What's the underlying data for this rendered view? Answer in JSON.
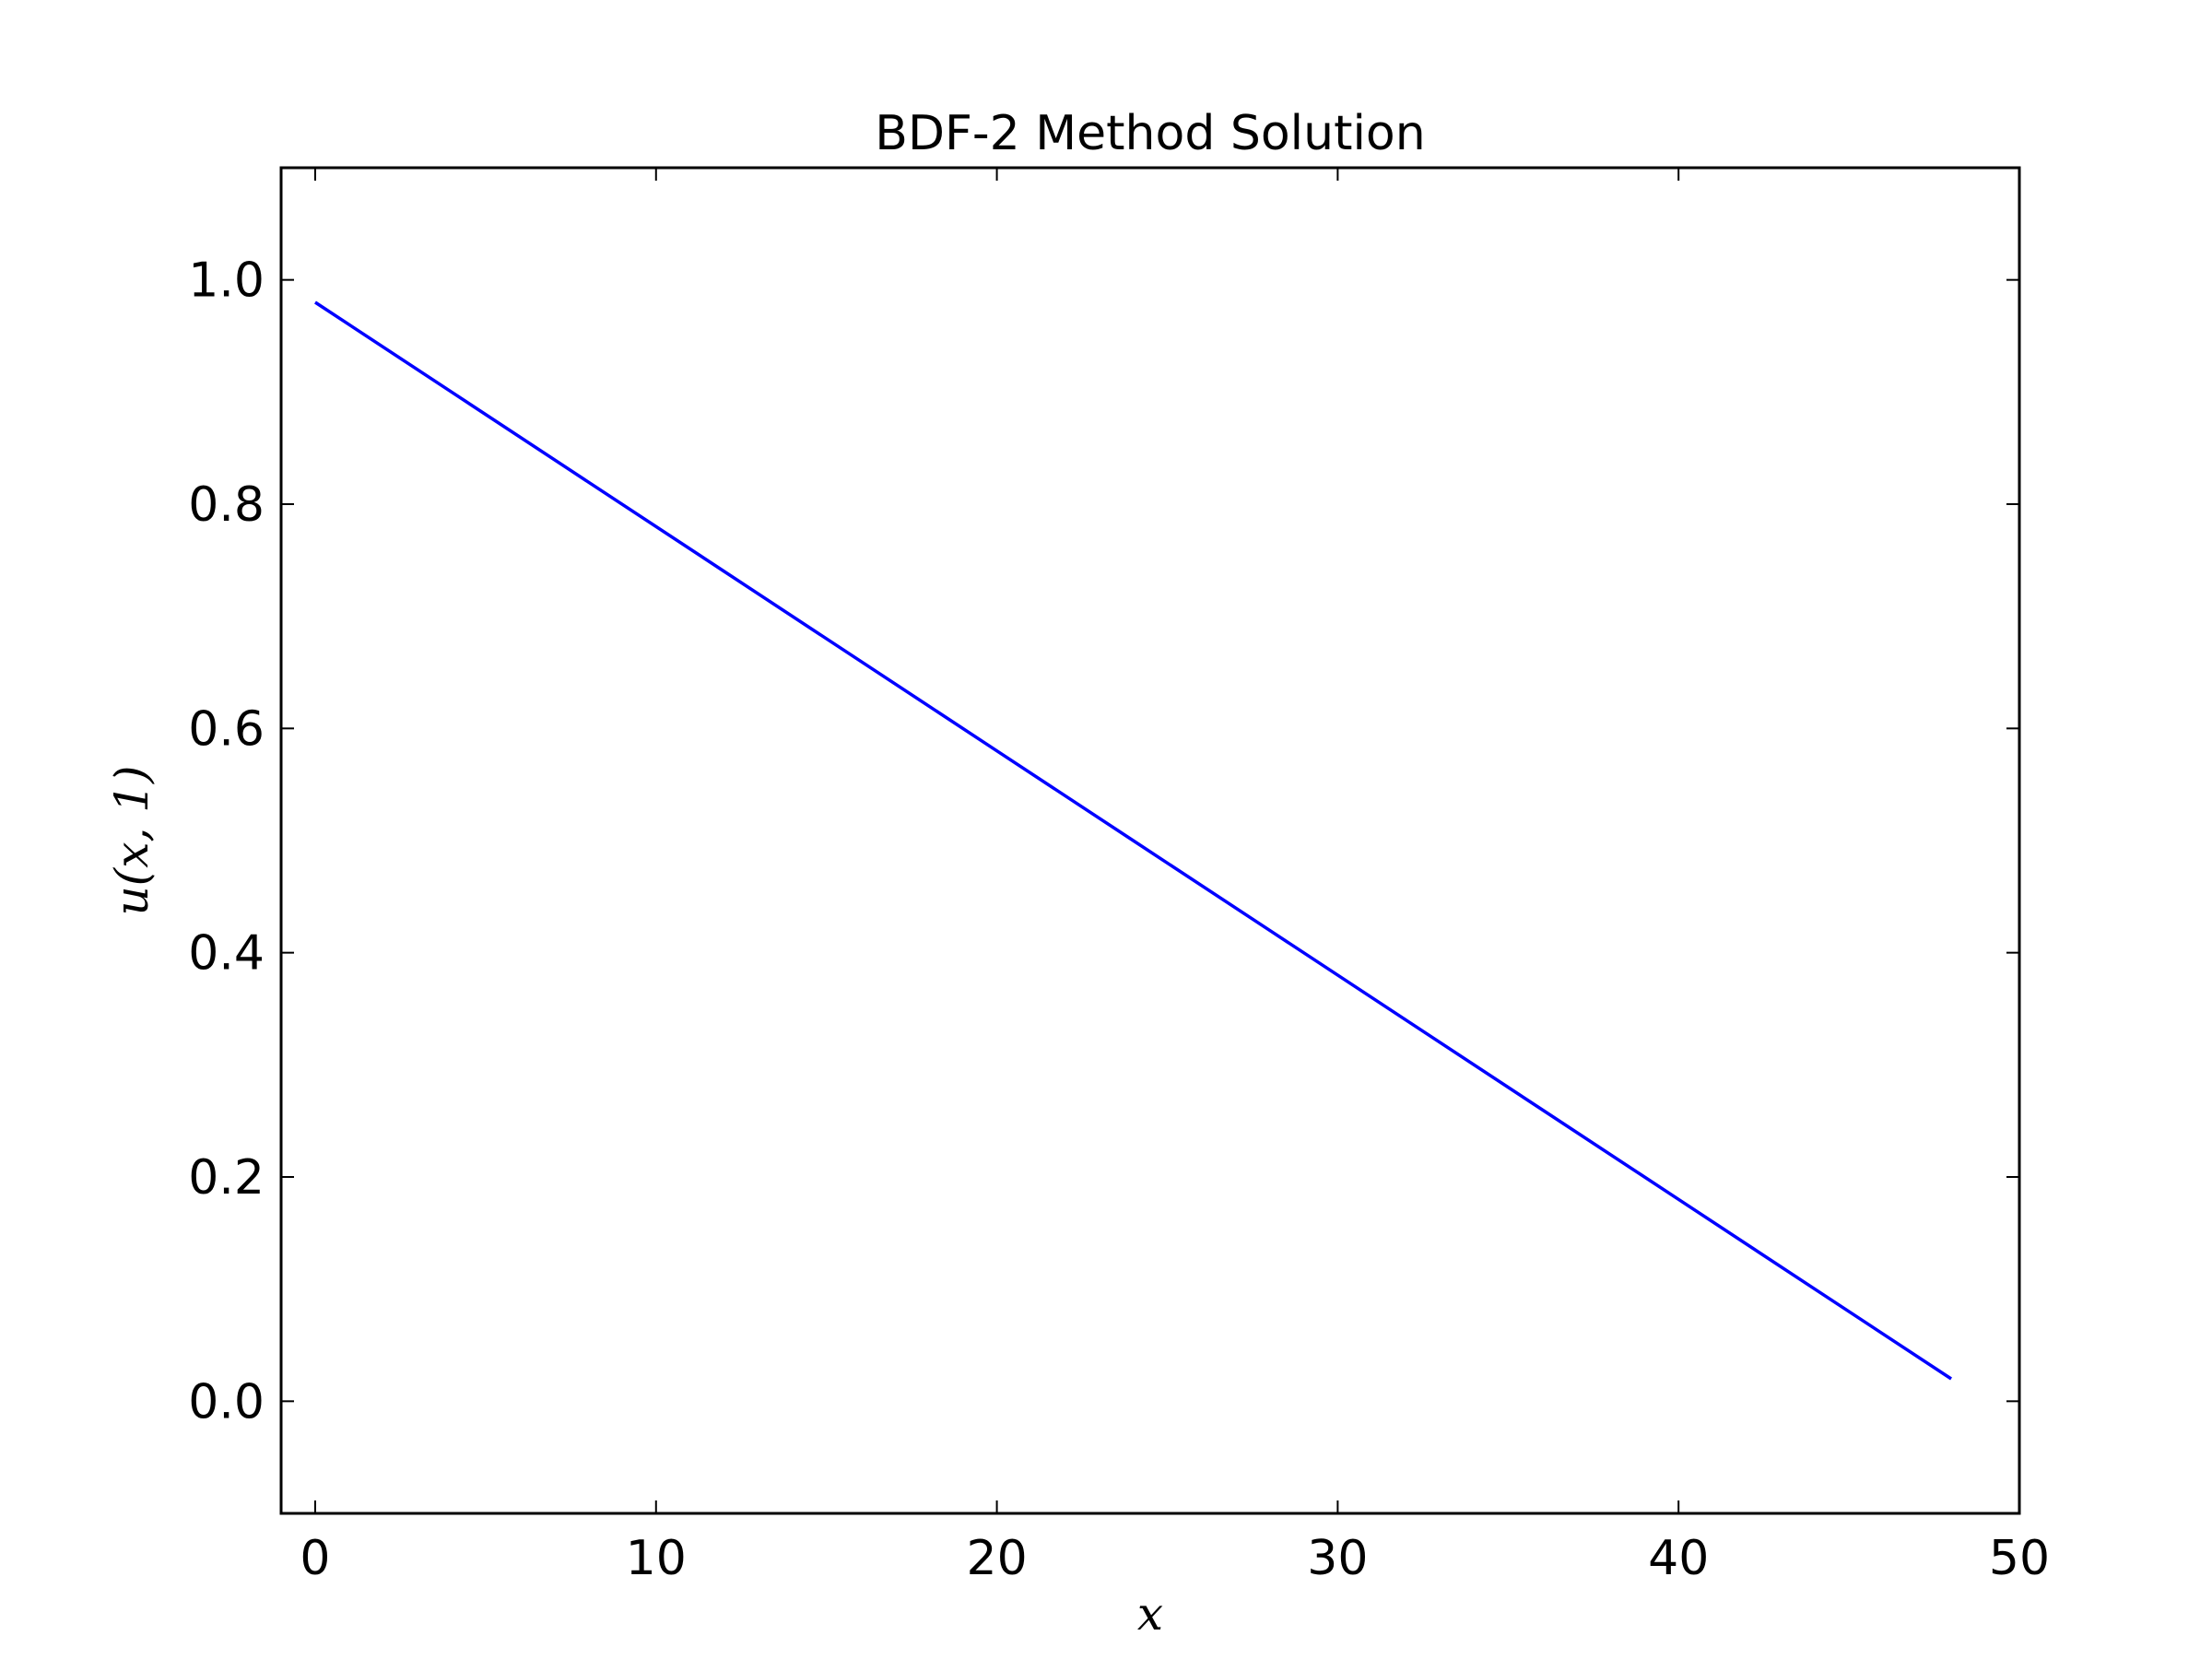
{
  "chart_data": {
    "type": "line",
    "title": "BDF-2 Method Solution",
    "xlabel": "x",
    "ylabel": "u(x, 1)",
    "xlim": [
      -1,
      50
    ],
    "ylim": [
      -0.1,
      1.1
    ],
    "xticks": [
      0,
      10,
      20,
      30,
      40,
      50
    ],
    "yticks": [
      0.0,
      0.2,
      0.4,
      0.6,
      0.8,
      1.0
    ],
    "xtick_labels": [
      "0",
      "10",
      "20",
      "30",
      "40",
      "50"
    ],
    "ytick_labels": [
      "0.0",
      "0.2",
      "0.4",
      "0.6",
      "0.8",
      "1.0"
    ],
    "grid": false,
    "series": [
      {
        "color": "#0000ff",
        "x": [
          0,
          4,
          8,
          12,
          16,
          20,
          24,
          28,
          32,
          36,
          40,
          44,
          48
        ],
        "y": [
          0.98,
          0.9,
          0.82,
          0.74,
          0.66,
          0.58,
          0.5,
          0.42,
          0.34,
          0.26,
          0.18,
          0.1,
          0.02
        ]
      }
    ]
  }
}
